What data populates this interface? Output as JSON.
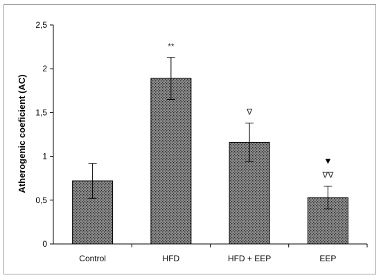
{
  "chart_data": {
    "type": "bar",
    "title": "",
    "xlabel": "",
    "ylabel": "Atherogenic coeficient (AC)",
    "ylim": [
      0,
      2.5
    ],
    "yticks": [
      "0",
      "0,5",
      "1",
      "1,5",
      "2",
      "2,5"
    ],
    "ytick_values": [
      0,
      0.5,
      1,
      1.5,
      2,
      2.5
    ],
    "categories": [
      "Control",
      "HFD",
      "HFD + EEP",
      "EEP"
    ],
    "values": [
      0.72,
      1.89,
      1.16,
      0.53
    ],
    "error": [
      0.2,
      0.24,
      0.22,
      0.13
    ],
    "annotations": [
      "",
      "**",
      "∇",
      "∇∇"
    ],
    "extra_markers": [
      "",
      "",
      "",
      "▼"
    ],
    "bar_fill": "#8c8c8c",
    "bar_pattern_dot": "#2a2a2a",
    "axis_color": "#000000",
    "frame_color": "#a0a0a0",
    "grid": false
  }
}
